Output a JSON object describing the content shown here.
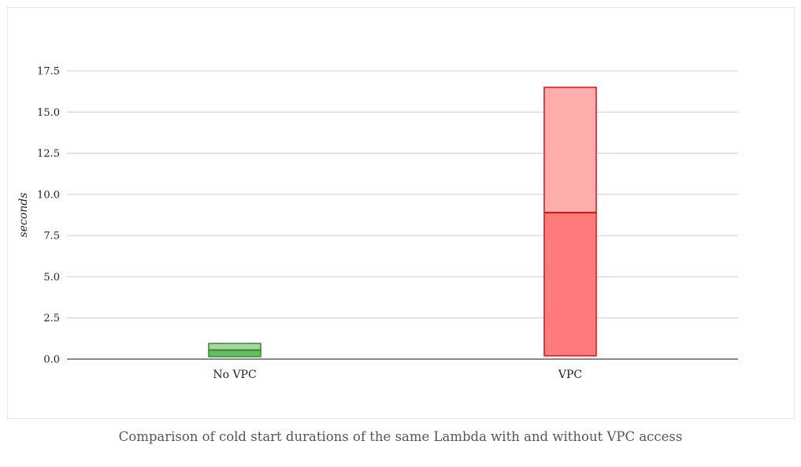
{
  "caption": "Comparison of cold start durations of the same Lambda with and without VPC access",
  "chart_data": {
    "type": "box",
    "categories": [
      "No VPC",
      "VPC"
    ],
    "ylabel": "seconds",
    "xlabel": "",
    "ylim": [
      0,
      17.5
    ],
    "yticks": [
      "0.0",
      "2.5",
      "5.0",
      "7.5",
      "10.0",
      "12.5",
      "15.0",
      "17.5"
    ],
    "grid": true,
    "boxes": [
      {
        "category": "No VPC",
        "q1": 0.15,
        "median": 0.55,
        "q3": 0.95,
        "fill_lower": "#66bb66",
        "fill_upper": "#a8d8a0",
        "stroke": "#2e8b2e"
      },
      {
        "category": "VPC",
        "q1": 0.2,
        "median": 8.9,
        "q3": 16.5,
        "fill_lower": "#ff7b7b",
        "fill_upper": "#ffadad",
        "stroke": "#dd1111"
      }
    ]
  }
}
